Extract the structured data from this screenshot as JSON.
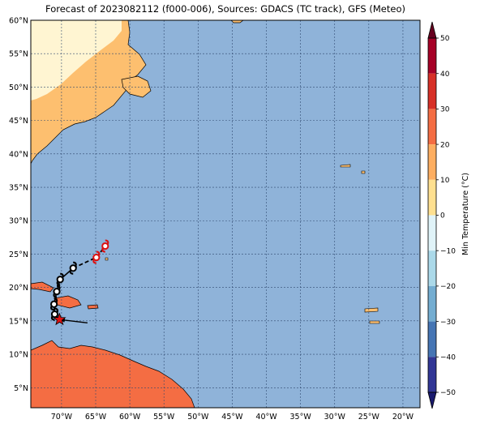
{
  "title": "Forecast of 2023082112 (f000-006), Sources: GDACS (TC track), GFS (Meteo)",
  "map": {
    "lon_min": -74.5,
    "lon_max": -17.5,
    "lat_min": 2.0,
    "lat_max": 60.0,
    "lat_ticks": [
      "60°N",
      "55°N",
      "50°N",
      "45°N",
      "40°N",
      "35°N",
      "30°N",
      "25°N",
      "20°N",
      "15°N",
      "10°N",
      "5°N"
    ],
    "lat_values": [
      60,
      55,
      50,
      45,
      40,
      35,
      30,
      25,
      20,
      15,
      10,
      5
    ],
    "lon_ticks": [
      "70°W",
      "65°W",
      "60°W",
      "55°W",
      "50°W",
      "45°W",
      "40°W",
      "35°W",
      "30°W",
      "25°W",
      "20°W"
    ],
    "lon_values": [
      -70,
      -65,
      -60,
      -55,
      -50,
      -45,
      -40,
      -35,
      -30,
      -25,
      -20
    ],
    "colors": {
      "ocean": "#8fb3d9",
      "land_cold": "#fff5d2",
      "land_mild": "#fdbf6f",
      "land_warm": "#f46d43",
      "gridline": "#304a70"
    }
  },
  "colorbar": {
    "label": "Min Temperature (°C)",
    "ticks": [
      "50",
      "40",
      "30",
      "20",
      "10",
      "0",
      "−10",
      "−20",
      "−30",
      "−40",
      "−50"
    ],
    "tick_values": [
      50,
      40,
      30,
      20,
      10,
      0,
      -10,
      -20,
      -30,
      -40,
      -50
    ],
    "bands": [
      {
        "from": 40,
        "to": 50,
        "color": "#a50026"
      },
      {
        "from": 30,
        "to": 40,
        "color": "#d73027"
      },
      {
        "from": 20,
        "to": 30,
        "color": "#f46d43"
      },
      {
        "from": 10,
        "to": 20,
        "color": "#fdae61"
      },
      {
        "from": 0,
        "to": 10,
        "color": "#fee090"
      },
      {
        "from": -10,
        "to": 0,
        "color": "#e0f3f8"
      },
      {
        "from": -20,
        "to": -10,
        "color": "#abd9e9"
      },
      {
        "from": -30,
        "to": -20,
        "color": "#74add1"
      },
      {
        "from": -40,
        "to": -30,
        "color": "#4575b4"
      },
      {
        "from": -50,
        "to": -40,
        "color": "#313695"
      }
    ],
    "over_color": "#67001f",
    "under_color": "#1a1a6e"
  },
  "track": {
    "history": [
      {
        "lon": -68.3,
        "lat": 22.9
      },
      {
        "lon": -70.2,
        "lat": 21.2
      },
      {
        "lon": -70.7,
        "lat": 19.4
      },
      {
        "lon": -71.1,
        "lat": 17.5
      },
      {
        "lon": -71.0,
        "lat": 16.0
      },
      {
        "lon": -70.3,
        "lat": 15.2
      }
    ],
    "current": {
      "lon": -70.3,
      "lat": 15.2,
      "color": "#dd1111"
    },
    "forecast": [
      {
        "lon": -64.9,
        "lat": 24.5,
        "color": "#dd1111"
      },
      {
        "lon": -63.6,
        "lat": 26.2,
        "color": "#dd1111"
      }
    ],
    "motion_arrow": {
      "from_lon": -66.2,
      "from_lat": 14.7,
      "to_lon": -70.3,
      "to_lat": 15.2
    }
  }
}
